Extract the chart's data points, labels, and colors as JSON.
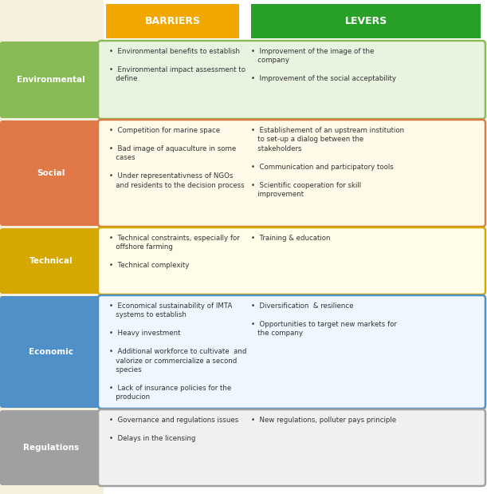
{
  "headers": [
    "BARRIERS",
    "LEVERS"
  ],
  "header_colors": [
    "#F0A800",
    "#28A028"
  ],
  "header_text_color": "#FFFFFF",
  "bg_color": "#F5F0DC",
  "rows": [
    {
      "label": "Environmental",
      "label_bg": "#88BB55",
      "label_text_color": "#FFFFFF",
      "row_bg": "#E8F4E0",
      "border_color": "#88BB55",
      "barriers": "•  Environmental benefits to establish\n\n•  Environmental impact assessment to\n   define",
      "levers": "•  Improvement of the image of the\n   company\n\n•  Improvement of the social acceptability"
    },
    {
      "label": "Social",
      "label_bg": "#E07848",
      "label_text_color": "#FFFFFF",
      "row_bg": "#FFFBE8",
      "border_color": "#E07848",
      "barriers": "•  Competition for marine space\n\n•  Bad image of aquaculture in some\n   cases\n\n•  Under representativness of NGOs\n   and residents to the decision process",
      "levers": "•  Establishement of an upstream institution\n   to set-up a dialog between the\n   stakeholders\n\n•  Communication and participatory tools\n\n•  Scientific cooperation for skill\n   improvement"
    },
    {
      "label": "Technical",
      "label_bg": "#D4A800",
      "label_text_color": "#FFFFFF",
      "row_bg": "#FFFDE8",
      "border_color": "#D4A800",
      "barriers": "•  Technical constraints, especially for\n   offshore farming\n\n•  Technical complexity",
      "levers": "•  Training & education"
    },
    {
      "label": "Economic",
      "label_bg": "#5090C8",
      "label_text_color": "#FFFFFF",
      "row_bg": "#EEF6FF",
      "border_color": "#5090C8",
      "barriers": "•  Economical sustainability of IMTA\n   systems to establish\n\n•  Heavy investment\n\n•  Additional workforce to cultivate  and\n   valorize or commercialize a second\n   species\n\n•  Lack of insurance policies for the\n   producion",
      "levers": "•  Diversification  & resilience\n\n•  Opportunities to target new markets for\n   the company"
    },
    {
      "label": "Regulations",
      "label_bg": "#A0A0A0",
      "label_text_color": "#FFFFFF",
      "row_bg": "#F0F0F0",
      "border_color": "#A0A0A0",
      "barriers": "•  Governance and regulations issues\n\n•  Delays in the licensing",
      "levers": "•  New regulations, polluter pays principle"
    }
  ],
  "fig_width": 6.11,
  "fig_height": 6.19,
  "dpi": 100
}
